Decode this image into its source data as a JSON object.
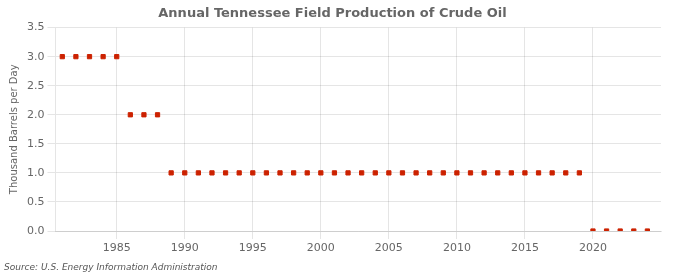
{
  "chart_data": {
    "type": "scatter",
    "title": "Annual Tennessee Field Production of Crude Oil",
    "ylabel": "Thousand Barrels per Day",
    "annotations": [
      "Source: U.S. Energy Information Administration"
    ],
    "color": "#cc2200",
    "marker": "square",
    "grid": true,
    "xlim": [
      1980.5,
      2025
    ],
    "xticks": [
      1985,
      1990,
      1995,
      2000,
      2005,
      2010,
      2015,
      2020
    ],
    "ylim": [
      0,
      3.5
    ],
    "yticks": [
      {
        "value": 0,
        "label": "0.0"
      },
      0.5,
      {
        "value": 1,
        "label": "1.0"
      },
      1.5,
      {
        "value": 2,
        "label": "2.0"
      },
      2.5,
      {
        "value": 3,
        "label": "3.0"
      },
      3.5
    ],
    "x": [
      1981,
      1982,
      1983,
      1984,
      1985,
      1986,
      1987,
      1988,
      1989,
      1990,
      1991,
      1992,
      1993,
      1994,
      1995,
      1996,
      1997,
      1998,
      1999,
      2000,
      2001,
      2002,
      2003,
      2004,
      2005,
      2006,
      2007,
      2008,
      2009,
      2010,
      2011,
      2012,
      2013,
      2014,
      2015,
      2016,
      2017,
      2018,
      2019,
      2020,
      2021,
      2022,
      2023,
      2024
    ],
    "values": [
      3.0,
      3.0,
      3.0,
      3.0,
      3.0,
      2.0,
      2.0,
      2.0,
      1.0,
      1.0,
      1.0,
      1.0,
      1.0,
      1.0,
      1.0,
      1.0,
      1.0,
      1.0,
      1.0,
      1.0,
      1.0,
      1.0,
      1.0,
      1.0,
      1.0,
      1.0,
      1.0,
      1.0,
      1.0,
      1.0,
      1.0,
      1.0,
      1.0,
      1.0,
      1.0,
      1.0,
      1.0,
      1.0,
      1.0,
      0.0,
      0.0,
      0.0,
      0.0,
      0.0
    ]
  }
}
